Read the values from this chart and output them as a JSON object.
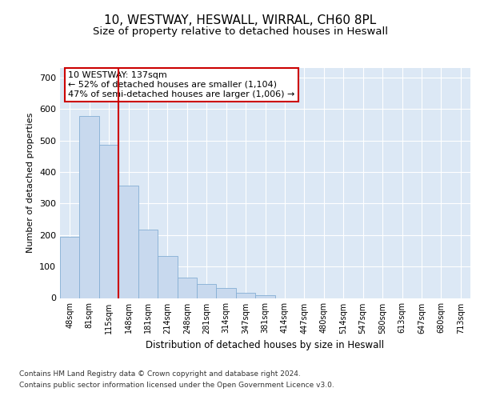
{
  "title1": "10, WESTWAY, HESWALL, WIRRAL, CH60 8PL",
  "title2": "Size of property relative to detached houses in Heswall",
  "xlabel": "Distribution of detached houses by size in Heswall",
  "ylabel": "Number of detached properties",
  "bar_labels": [
    "48sqm",
    "81sqm",
    "115sqm",
    "148sqm",
    "181sqm",
    "214sqm",
    "248sqm",
    "281sqm",
    "314sqm",
    "347sqm",
    "381sqm",
    "414sqm",
    "447sqm",
    "480sqm",
    "514sqm",
    "547sqm",
    "580sqm",
    "613sqm",
    "647sqm",
    "680sqm",
    "713sqm"
  ],
  "bar_values": [
    193,
    578,
    487,
    357,
    216,
    134,
    64,
    44,
    33,
    16,
    10,
    0,
    0,
    0,
    0,
    0,
    0,
    0,
    0,
    0,
    0
  ],
  "bar_color": "#c8d9ee",
  "bar_edge_color": "#85aed4",
  "vline_color": "#cc0000",
  "annotation_title": "10 WESTWAY: 137sqm",
  "annotation_line1": "← 52% of detached houses are smaller (1,104)",
  "annotation_line2": "47% of semi-detached houses are larger (1,006) →",
  "annotation_box_color": "#ffffff",
  "annotation_box_edge": "#cc0000",
  "footer1": "Contains HM Land Registry data © Crown copyright and database right 2024.",
  "footer2": "Contains public sector information licensed under the Open Government Licence v3.0.",
  "ylim": [
    0,
    730
  ],
  "yticks": [
    0,
    100,
    200,
    300,
    400,
    500,
    600,
    700
  ],
  "fig_bg_color": "#ffffff",
  "plot_bg_color": "#dce8f5"
}
